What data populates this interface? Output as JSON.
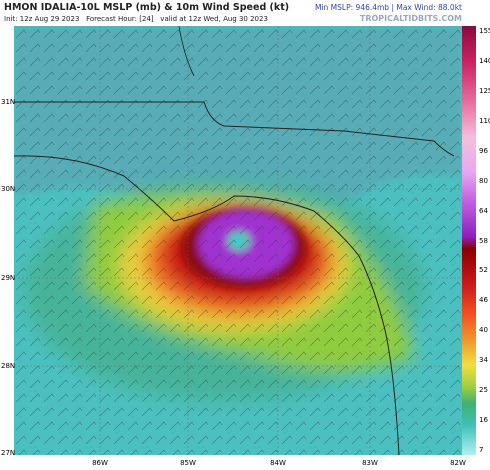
{
  "header": {
    "title": "HMON IDALIA-10L MSLP (mb) & 10m Wind Speed (kt)",
    "info": "Init: 12z Aug 29 2023   Forecast Hour: [24]   valid at 12z Wed, Aug 30 2023",
    "stats": "Min MSLP: 946.4mb | Max Wind: 88.0kt",
    "brand": "TROPICALTIDBITS.COM"
  },
  "map": {
    "latitudes": [
      "31N",
      "30N",
      "29N",
      "28N",
      "27N"
    ],
    "longitudes": [
      "86W",
      "85W",
      "84W",
      "83W",
      "82W"
    ]
  },
  "colorbar": {
    "labels": [
      "155",
      "140",
      "125",
      "110",
      "96",
      "80",
      "64",
      "58",
      "52",
      "46",
      "40",
      "34",
      "25",
      "16",
      "7"
    ]
  }
}
